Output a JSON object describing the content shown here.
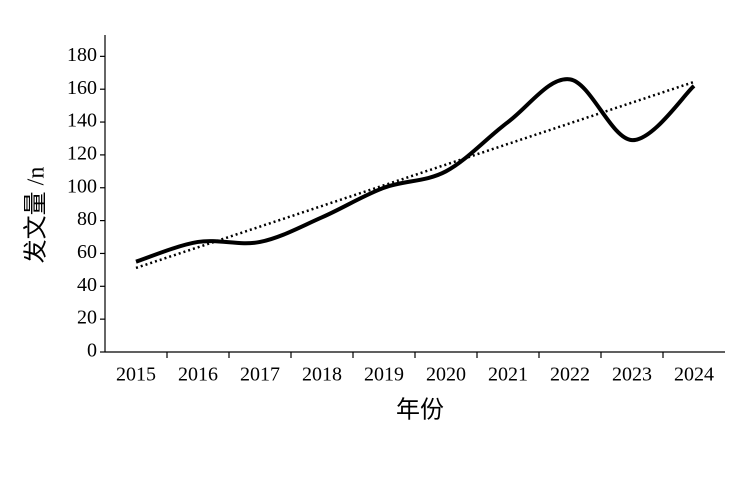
{
  "chart_data": {
    "type": "line",
    "xlabel": "年份",
    "ylabel": "发文量 /n",
    "categories": [
      "2015",
      "2016",
      "2017",
      "2018",
      "2019",
      "2020",
      "2021",
      "2022",
      "2023",
      "2024"
    ],
    "values": [
      55,
      67,
      67,
      82,
      100,
      110,
      140,
      166,
      129,
      162
    ],
    "color": "#000000",
    "smooth": true,
    "trendline": "linear",
    "ylim": [
      0,
      193
    ],
    "yticks": [
      0,
      20,
      40,
      60,
      80,
      100,
      120,
      140,
      160,
      180
    ],
    "grid": false
  }
}
